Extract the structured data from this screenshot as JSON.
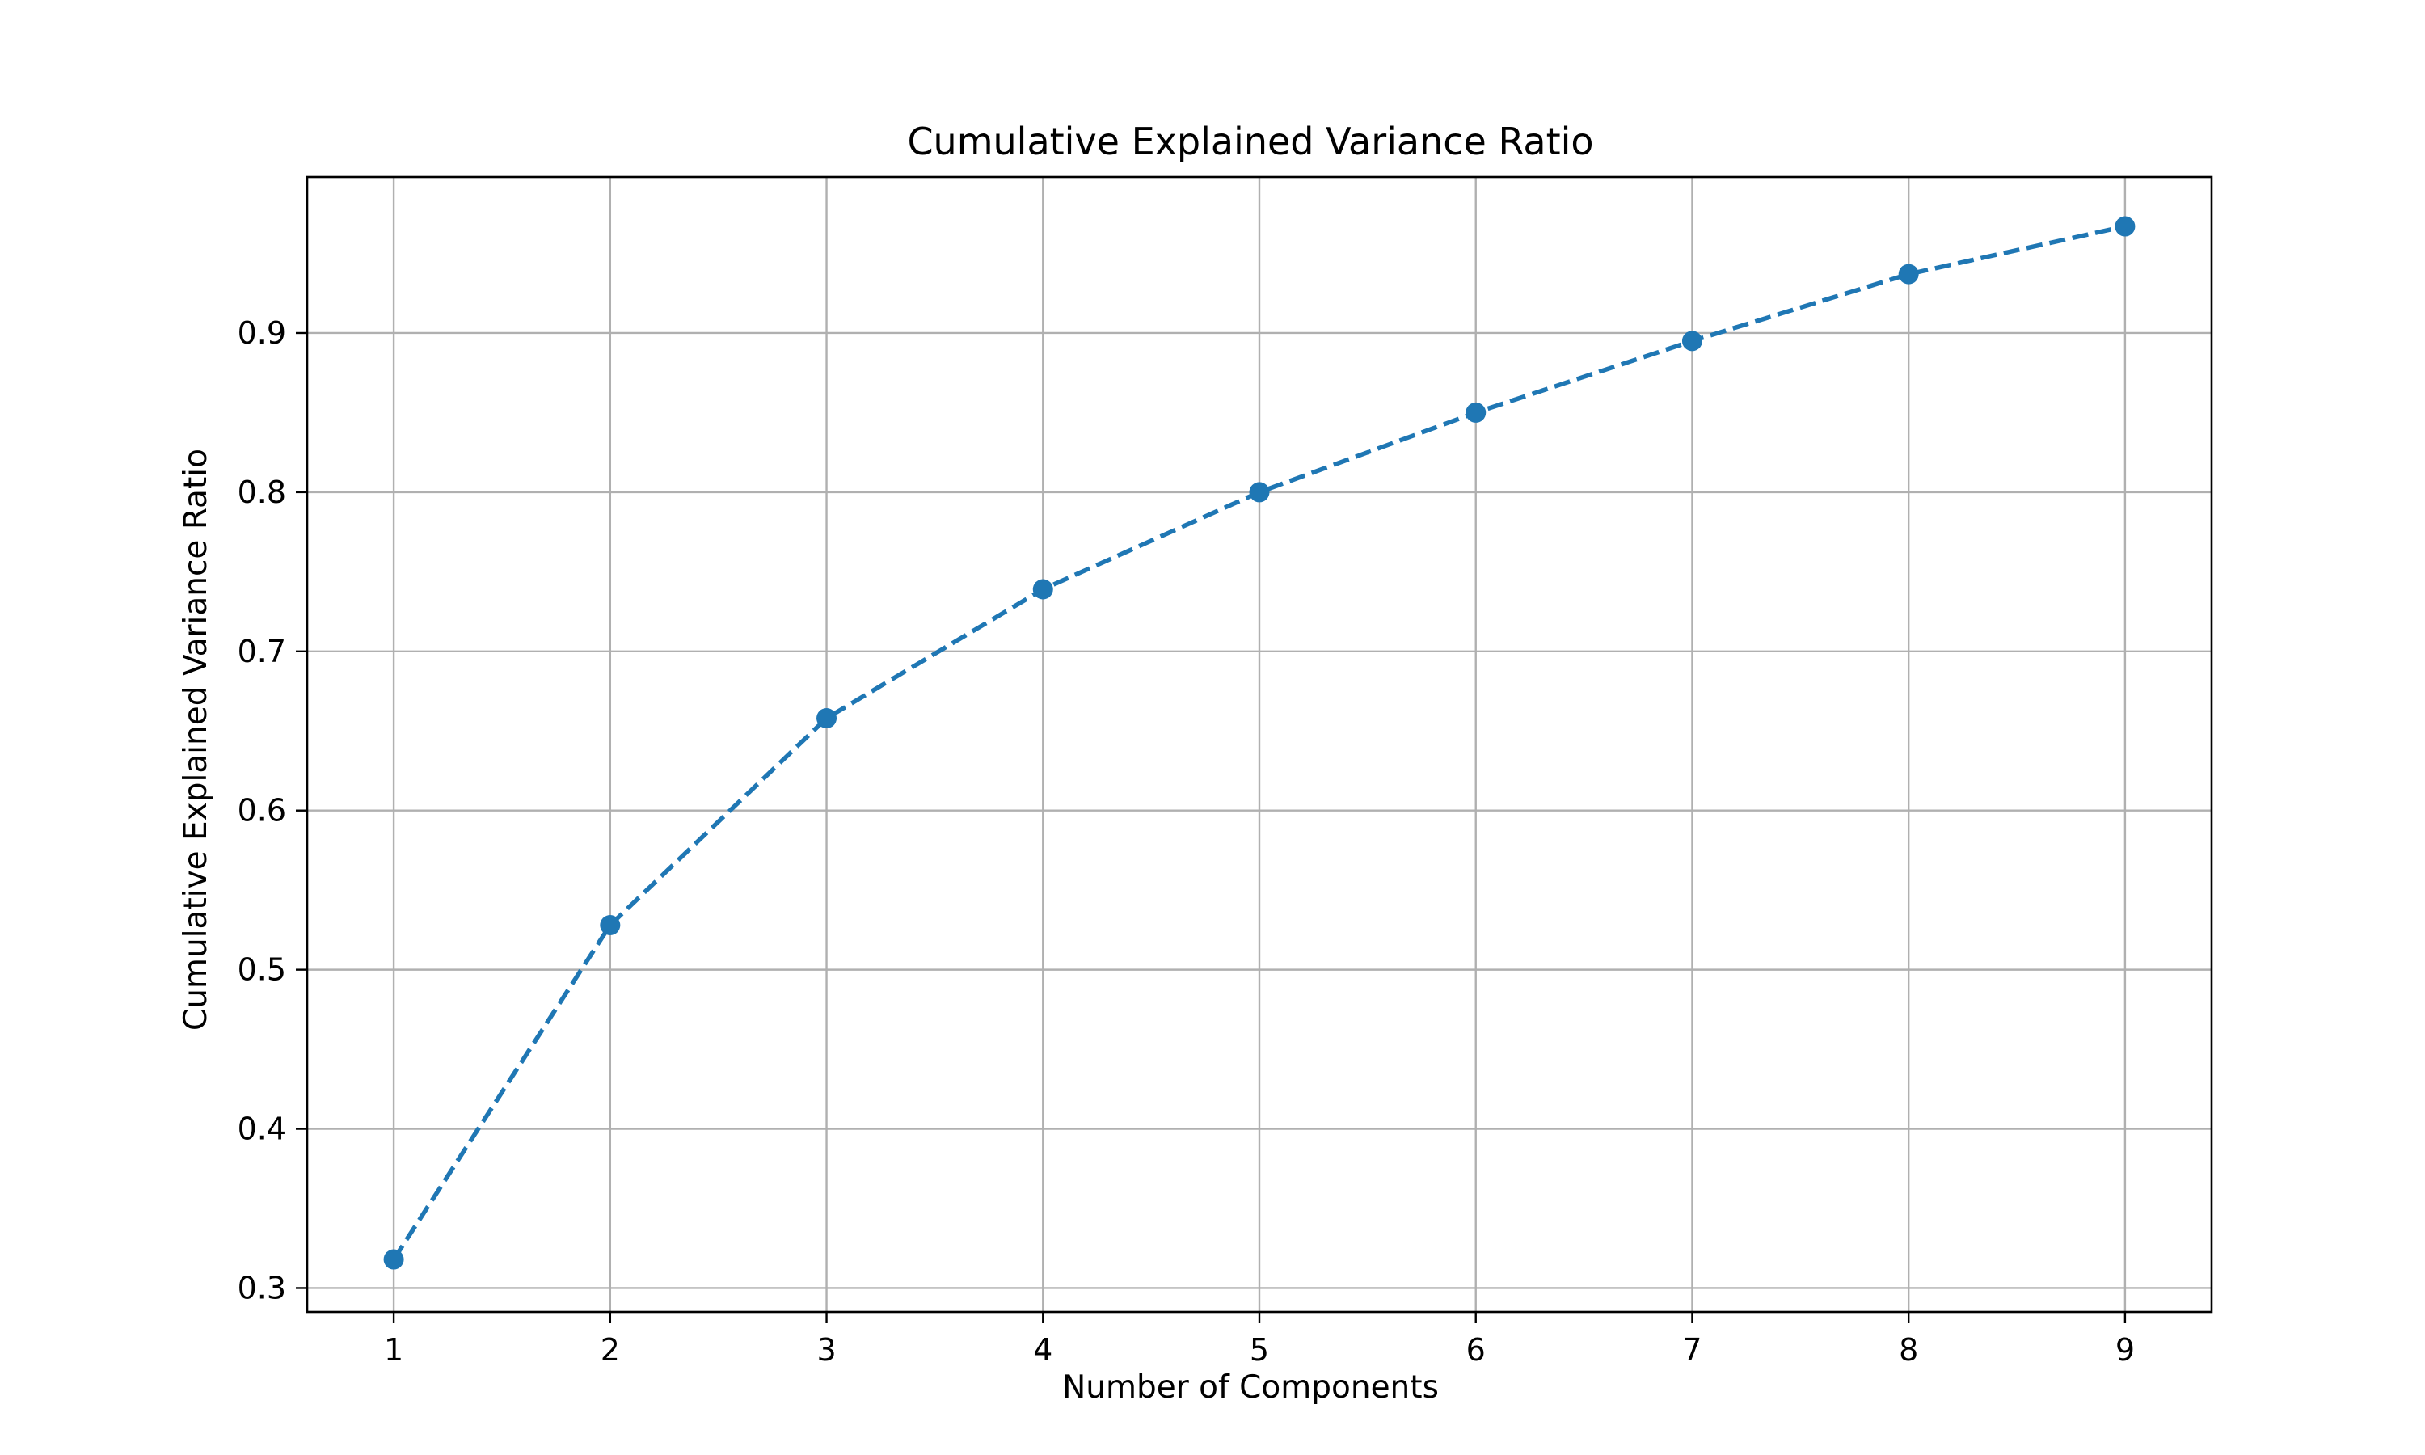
{
  "chart_data": {
    "type": "line",
    "title": "Cumulative Explained Variance Ratio",
    "xlabel": "Number of Components",
    "ylabel": "Cumulative Explained Variance Ratio",
    "x": [
      1,
      2,
      3,
      4,
      5,
      6,
      7,
      8,
      9
    ],
    "series": [
      {
        "values": [
          0.318,
          0.528,
          0.658,
          0.739,
          0.8,
          0.85,
          0.895,
          0.937,
          0.967
        ],
        "color": "#1f77b4",
        "line_style": "dashed",
        "marker": "circle"
      }
    ],
    "xticks": [
      "1",
      "2",
      "3",
      "4",
      "5",
      "6",
      "7",
      "8",
      "9"
    ],
    "yticks": [
      "0.3",
      "0.4",
      "0.5",
      "0.6",
      "0.7",
      "0.8",
      "0.9"
    ],
    "xlim": [
      0.6,
      9.4
    ],
    "ylim": [
      0.285,
      0.998
    ],
    "grid": true,
    "grid_color": "#b0b0b0",
    "axes_color": "#000000",
    "background": "#ffffff"
  }
}
